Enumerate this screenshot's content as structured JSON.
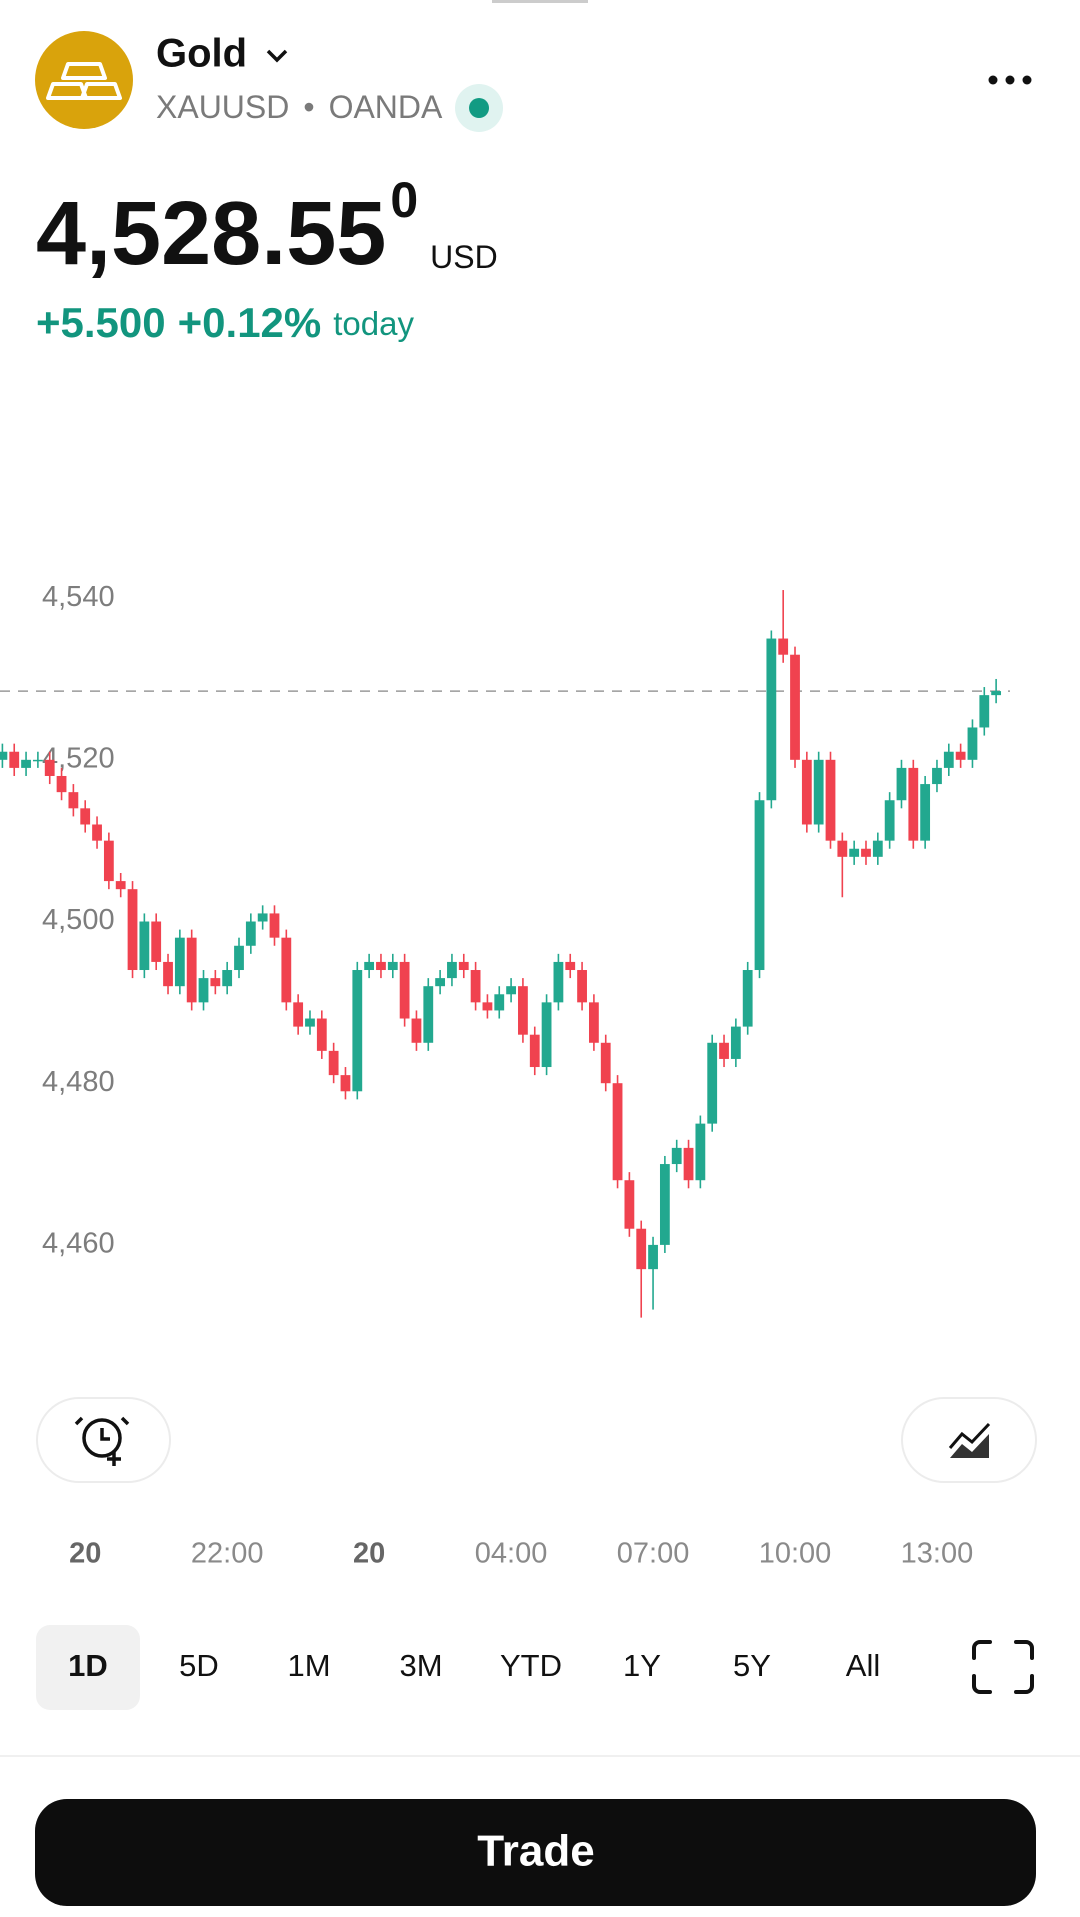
{
  "header": {
    "name": "Gold",
    "symbol": "XAUUSD",
    "separator": "•",
    "exchange": "OANDA",
    "price": "4,528.55",
    "price_last_digit": "0",
    "currency": "USD",
    "change": "+5.500",
    "change_percent": "+0.12%",
    "change_period": "today"
  },
  "chart_data": {
    "type": "candlestick",
    "categories": [
      null,
      null,
      null,
      null,
      null,
      null,
      null,
      "20",
      null,
      null,
      null,
      null,
      null,
      null,
      null,
      null,
      null,
      null,
      null,
      "22:00",
      null,
      null,
      null,
      null,
      null,
      null,
      null,
      null,
      null,
      null,
      null,
      "20",
      null,
      null,
      null,
      null,
      null,
      null,
      null,
      null,
      null,
      null,
      null,
      "04:00",
      null,
      null,
      null,
      null,
      null,
      null,
      null,
      null,
      null,
      null,
      null,
      "07:00",
      null,
      null,
      null,
      null,
      null,
      null,
      null,
      null,
      null,
      null,
      null,
      "10:00",
      null,
      null,
      null,
      null,
      null,
      null,
      null,
      null,
      null,
      null,
      null,
      "13:00",
      null,
      null,
      null,
      null,
      null
    ],
    "open": [
      4520,
      4521,
      4519,
      4520,
      4520,
      4518,
      4516,
      4514,
      4512,
      4510,
      4505,
      4504,
      4494,
      4500,
      4495,
      4492,
      4498,
      4490,
      4493,
      4492,
      4494,
      4497,
      4500,
      4501,
      4498,
      4490,
      4487,
      4488,
      4484,
      4481,
      4479,
      4494,
      4495,
      4494,
      4495,
      4488,
      4485,
      4492,
      4493,
      4495,
      4494,
      4490,
      4489,
      4491,
      4492,
      4486,
      4482,
      4490,
      4495,
      4494,
      4490,
      4485,
      4480,
      4468,
      4462,
      4457,
      4460,
      4470,
      4472,
      4468,
      4475,
      4485,
      4483,
      4487,
      4494,
      4515,
      4535,
      4533,
      4520,
      4512,
      4520,
      4510,
      4508,
      4509,
      4508,
      4510,
      4515,
      4519,
      4510,
      4517,
      4519,
      4521,
      4520,
      4524,
      4528
    ],
    "high": [
      4522,
      4522,
      4521,
      4521,
      4521,
      4519,
      4517,
      4515,
      4513,
      4511,
      4506,
      4505,
      4501,
      4501,
      4496,
      4499,
      4499,
      4494,
      4494,
      4495,
      4498,
      4501,
      4502,
      4502,
      4499,
      4491,
      4489,
      4489,
      4485,
      4482,
      4495,
      4496,
      4496,
      4496,
      4496,
      4489,
      4493,
      4494,
      4496,
      4496,
      4495,
      4491,
      4492,
      4493,
      4493,
      4487,
      4491,
      4496,
      4496,
      4495,
      4491,
      4486,
      4481,
      4469,
      4463,
      4461,
      4471,
      4473,
      4473,
      4476,
      4486,
      4486,
      4488,
      4495,
      4516,
      4536,
      4541,
      4534,
      4521,
      4521,
      4521,
      4511,
      4510,
      4510,
      4511,
      4516,
      4520,
      4520,
      4518,
      4520,
      4522,
      4522,
      4525,
      4529,
      4530
    ],
    "low": [
      4519,
      4518,
      4518,
      4519,
      4517,
      4515,
      4513,
      4511,
      4509,
      4504,
      4503,
      4493,
      4493,
      4494,
      4491,
      4491,
      4489,
      4489,
      4491,
      4491,
      4493,
      4496,
      4499,
      4497,
      4489,
      4486,
      4486,
      4483,
      4480,
      4478,
      4478,
      4493,
      4493,
      4493,
      4487,
      4484,
      4484,
      4491,
      4492,
      4493,
      4489,
      4488,
      4488,
      4490,
      4485,
      4481,
      4481,
      4489,
      4493,
      4489,
      4484,
      4479,
      4467,
      4461,
      4451,
      4452,
      4459,
      4469,
      4467,
      4467,
      4474,
      4482,
      4482,
      4486,
      4493,
      4514,
      4532,
      4519,
      4511,
      4511,
      4509,
      4503,
      4507,
      4507,
      4507,
      4509,
      4514,
      4509,
      4509,
      4516,
      4518,
      4519,
      4519,
      4523,
      4527
    ],
    "close": [
      4521,
      4519,
      4520,
      4520,
      4518,
      4516,
      4514,
      4512,
      4510,
      4505,
      4504,
      4494,
      4500,
      4495,
      4492,
      4498,
      4490,
      4493,
      4492,
      4494,
      4497,
      4500,
      4501,
      4498,
      4490,
      4487,
      4488,
      4484,
      4481,
      4479,
      4494,
      4495,
      4494,
      4495,
      4488,
      4485,
      4492,
      4493,
      4495,
      4494,
      4490,
      4489,
      4491,
      4492,
      4486,
      4482,
      4490,
      4495,
      4494,
      4490,
      4485,
      4480,
      4468,
      4462,
      4457,
      4460,
      4470,
      4472,
      4468,
      4475,
      4485,
      4483,
      4487,
      4494,
      4515,
      4535,
      4533,
      4520,
      4512,
      4520,
      4510,
      4508,
      4509,
      4508,
      4510,
      4515,
      4519,
      4510,
      4517,
      4519,
      4521,
      4520,
      4524,
      4528,
      4528.5
    ],
    "up_color": "#22a88f",
    "down_color": "#f0424f",
    "ylim": [
      4447,
      4565
    ],
    "yticks": [
      {
        "value": 4460,
        "label": "4,460"
      },
      {
        "value": 4480,
        "label": "4,480"
      },
      {
        "value": 4500,
        "label": "4,500"
      },
      {
        "value": 4520,
        "label": "4,520"
      },
      {
        "value": 4540,
        "label": "4,540"
      }
    ],
    "grid": false
  },
  "ranges": {
    "items": [
      "1D",
      "5D",
      "1M",
      "3M",
      "YTD",
      "1Y",
      "5Y",
      "All"
    ],
    "selected": 0
  },
  "trade_button": "Trade"
}
